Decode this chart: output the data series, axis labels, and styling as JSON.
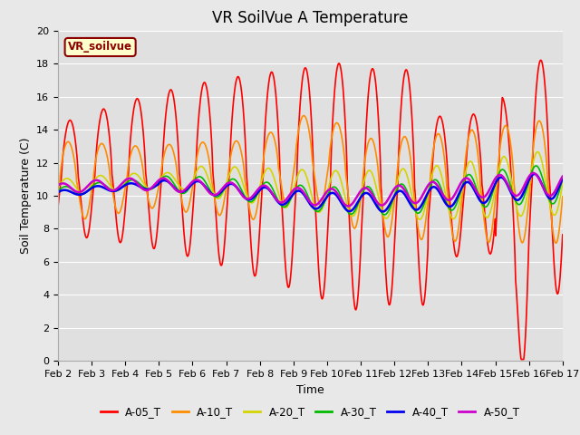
{
  "title": "VR SoilVue A Temperature",
  "xlabel": "Time",
  "ylabel": "Soil Temperature (C)",
  "ylim": [
    0,
    20
  ],
  "background_color": "#e8e8e8",
  "plot_bg_color": "#e0e0e0",
  "xtick_labels": [
    "Feb 2",
    "Feb 3",
    "Feb 4",
    "Feb 5",
    "Feb 6",
    "Feb 7",
    "Feb 8",
    "Feb 9",
    "Feb 10",
    "Feb 11",
    "Feb 12",
    "Feb 13",
    "Feb 14",
    "Feb 15",
    "Feb 16",
    "Feb 17"
  ],
  "legend_label": "VR_soilvue",
  "series_colors": {
    "A-05_T": "#ff0000",
    "A-10_T": "#ff8c00",
    "A-20_T": "#d4d400",
    "A-30_T": "#00bb00",
    "A-40_T": "#0000ee",
    "A-50_T": "#cc00cc"
  },
  "series_lw": {
    "A-05_T": 1.2,
    "A-10_T": 1.2,
    "A-20_T": 1.2,
    "A-30_T": 1.2,
    "A-40_T": 1.8,
    "A-50_T": 1.8
  },
  "grid_color": "#ffffff",
  "tick_fontsize": 8,
  "title_fontsize": 12,
  "axis_label_fontsize": 9
}
